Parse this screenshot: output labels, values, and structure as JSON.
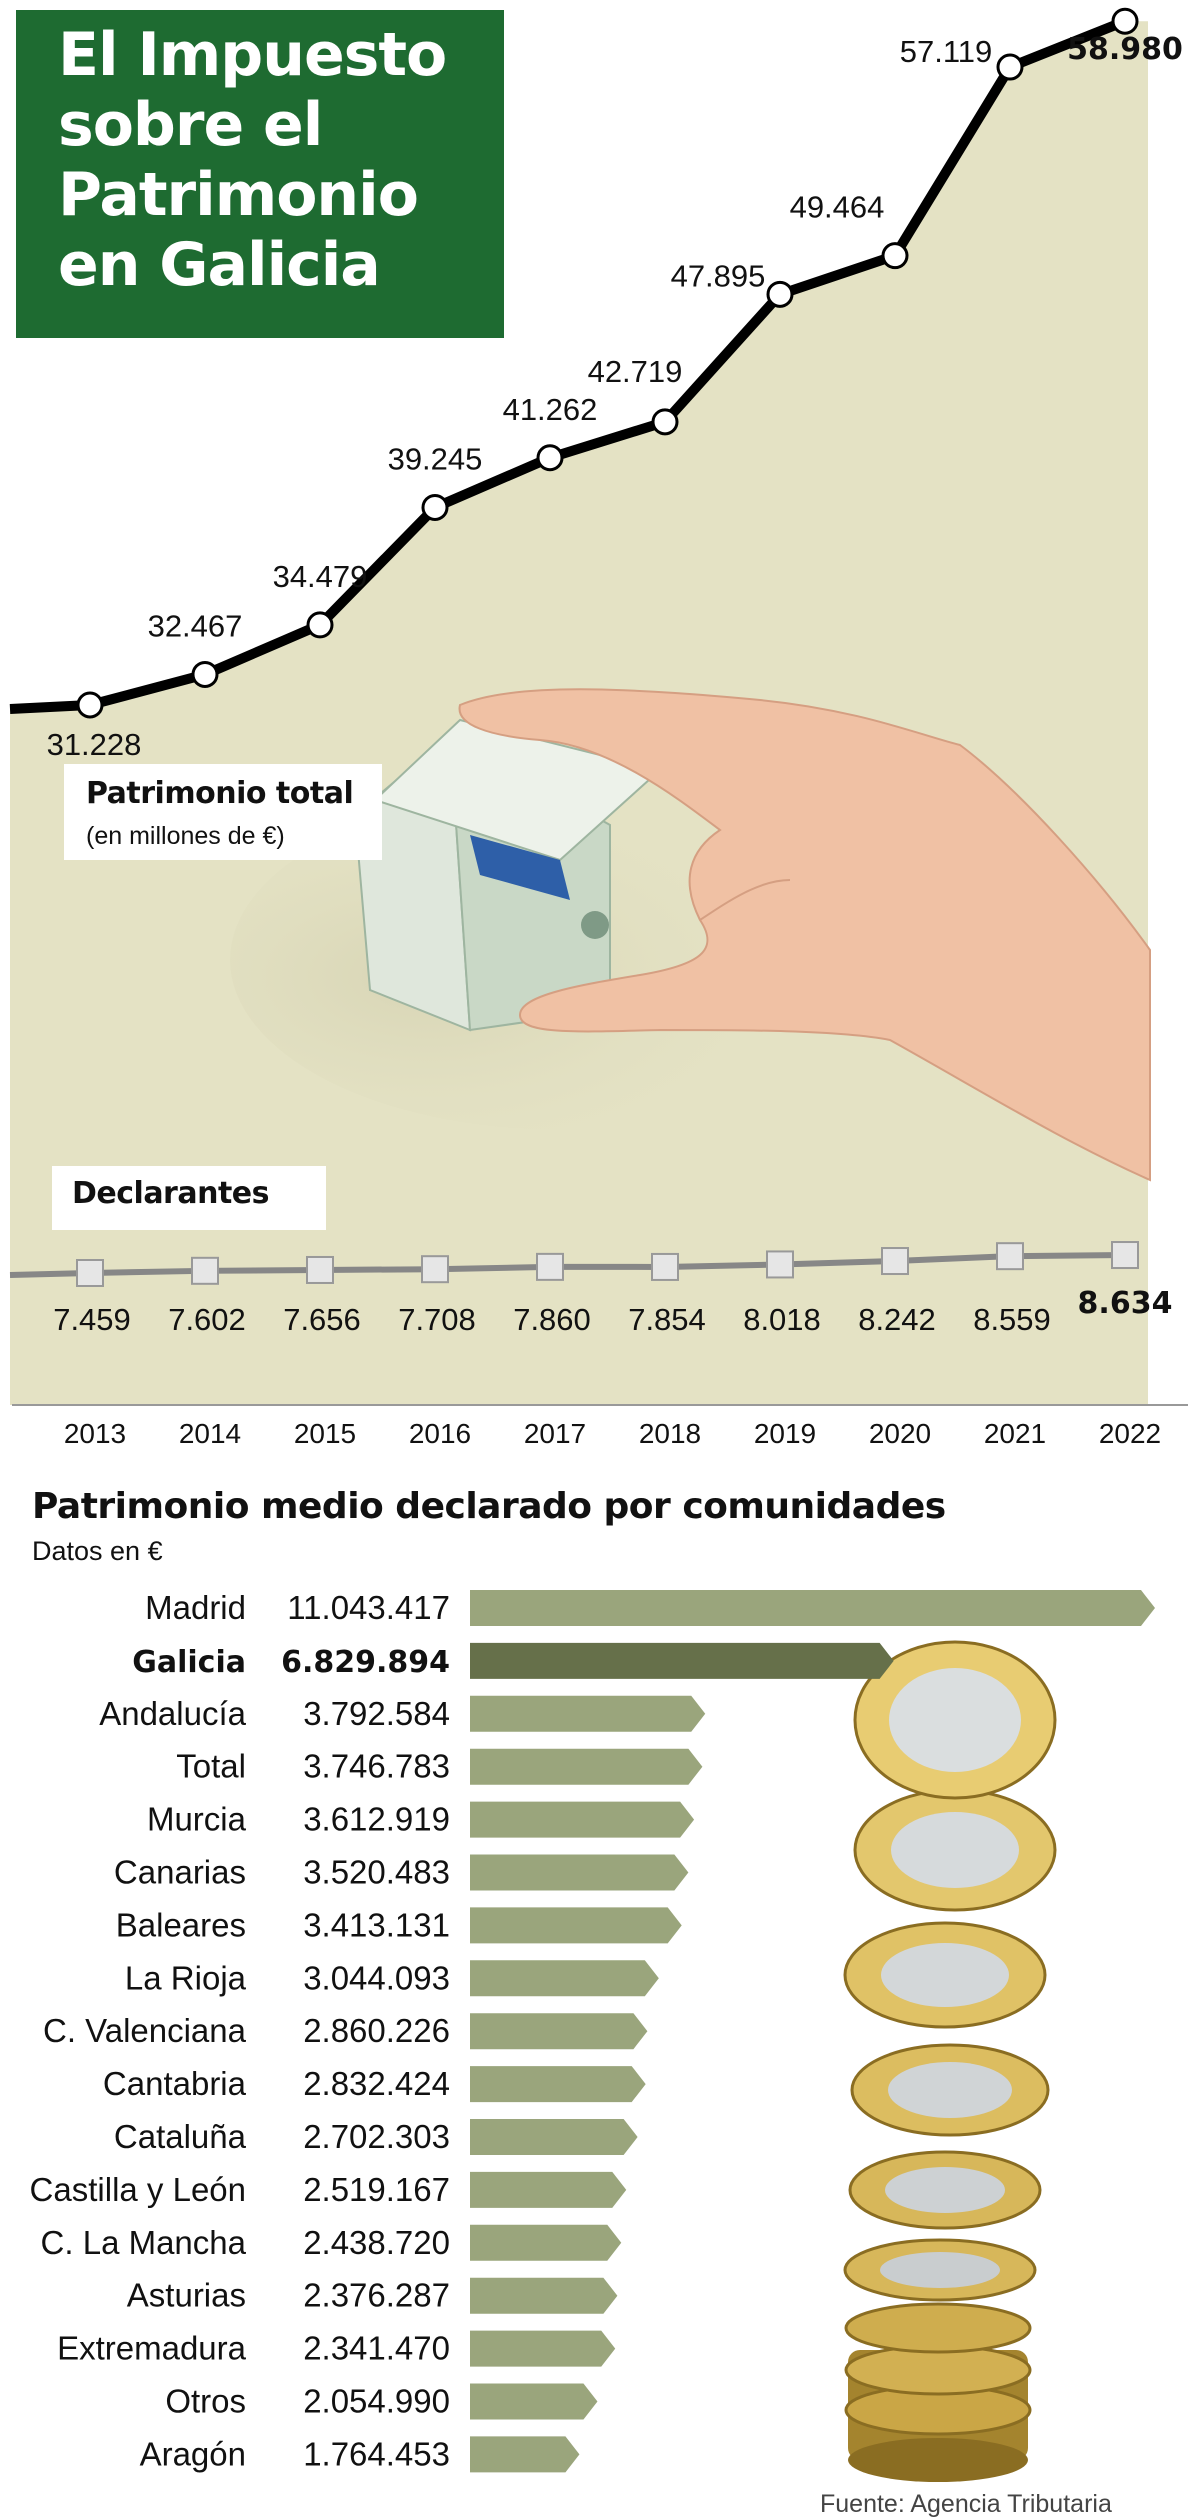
{
  "header": {
    "title_lines": [
      "El Impuesto",
      "sobre el",
      "Patrimonio",
      "en Galicia"
    ]
  },
  "labels": {
    "total_title": "Patrimonio total",
    "total_sub": "(en millones de €)",
    "declarantes_title": "Declarantes"
  },
  "section2": {
    "title": "Patrimonio medio declarado por comunidades",
    "subtitle": "Datos en €"
  },
  "source": "Fuente: Agencia Tributaria",
  "colors": {
    "title_bg": "#1e6b31",
    "plot_bg": "#e4e2c4",
    "bar": "#9aa57c",
    "bar_highlight": "#66704a"
  },
  "chart_data": [
    {
      "type": "line",
      "x": [
        "2013",
        "2014",
        "2015",
        "2016",
        "2017",
        "2018",
        "2019",
        "2020",
        "2021",
        "2022"
      ],
      "series": [
        {
          "name": "Patrimonio total",
          "values": [
            31228,
            32467,
            34479,
            39245,
            41262,
            42719,
            47895,
            49464,
            57119,
            58980
          ],
          "labels": [
            "31.228",
            "32.467",
            "34.479",
            "39.245",
            "41.262",
            "42.719",
            "47.895",
            "49.464",
            "57.119",
            "58.980"
          ]
        },
        {
          "name": "Declarantes",
          "values": [
            7459,
            7602,
            7656,
            7708,
            7860,
            7854,
            8018,
            8242,
            8559,
            8634
          ],
          "labels": [
            "7.459",
            "7.602",
            "7.656",
            "7.708",
            "7.860",
            "7.854",
            "8.018",
            "8.242",
            "8.559",
            "8.634"
          ]
        }
      ]
    },
    {
      "type": "bar",
      "orientation": "horizontal",
      "categories": [
        "Madrid",
        "Galicia",
        "Andalucía",
        "Total",
        "Murcia",
        "Canarias",
        "Baleares",
        "La Rioja",
        "C. Valenciana",
        "Cantabria",
        "Cataluña",
        "Castilla y León",
        "C.  La Mancha",
        "Asturias",
        "Extremadura",
        "Otros",
        "Aragón"
      ],
      "values": [
        11043417,
        6829894,
        3792584,
        3746783,
        3612919,
        3520483,
        3413131,
        3044093,
        2860226,
        2832424,
        2702303,
        2519167,
        2438720,
        2376287,
        2341470,
        2054990,
        1764453
      ],
      "labels": [
        "11.043.417",
        "6.829.894",
        "3.792.584",
        "3.746.783",
        "3.612.919",
        "3.520.483",
        "3.413.131",
        "3.044.093",
        "2.860.226",
        "2.832.424",
        "2.702.303",
        "2.519.167",
        "2.438.720",
        "2.376.287",
        "2.341.470",
        "2.054.990",
        "1.764.453"
      ],
      "highlight": "Galicia"
    }
  ]
}
